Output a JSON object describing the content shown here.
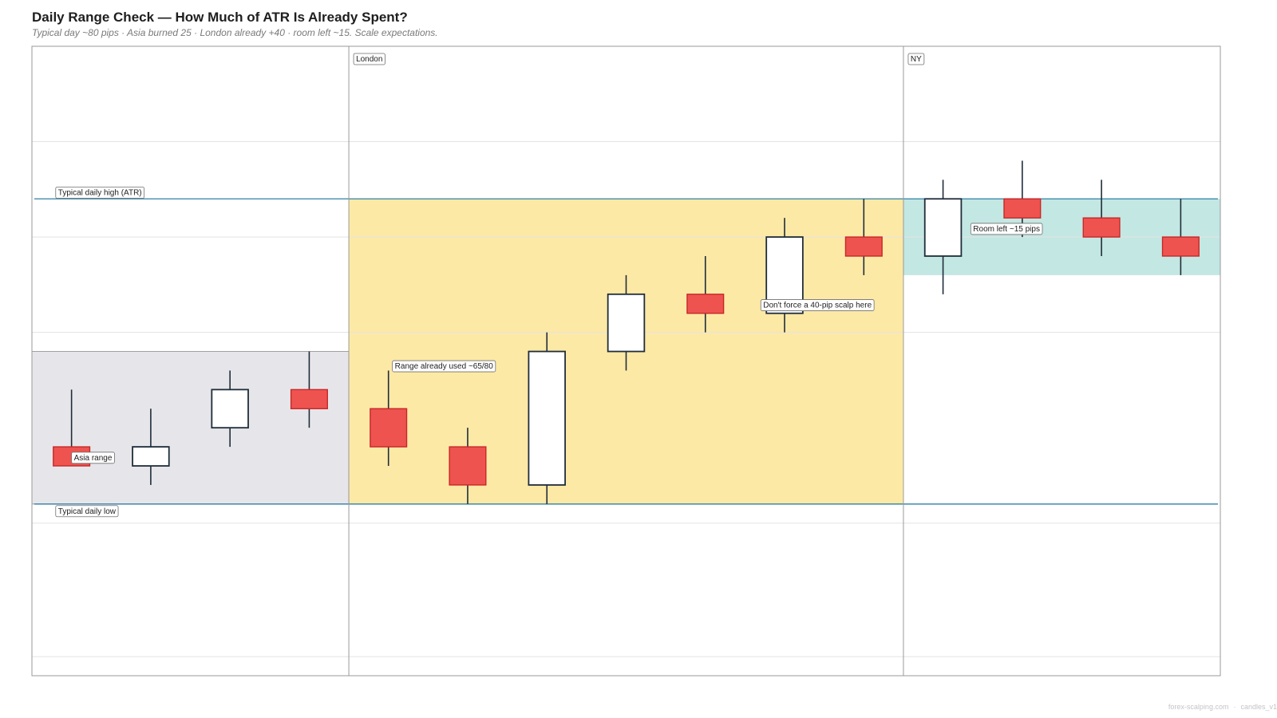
{
  "title": "Daily Range Check — How Much of ATR Is Already Spent?",
  "subtitle": "Typical day ~80 pips · Asia burned 25 · London already +40 · room left ~15. Scale expectations.",
  "footer": {
    "site": "forex-scalping.com",
    "tag": "candles_v1"
  },
  "colors": {
    "bull_fill": "#ffffff",
    "bull_stroke": "#1f2d3a",
    "bear_fill": "#ef5350",
    "bear_stroke": "#c62828",
    "wick": "#1f2d3a",
    "asia_zone": "#e6e6ea",
    "london_zone": "#fde9a6",
    "room_zone": "#c3e7e2",
    "atr_line": "#2f7fa6",
    "grid": "#e3e3e3",
    "divider": "#9a9a9a"
  },
  "chart_data": {
    "type": "candlestick",
    "ylim": [
      -15,
      150
    ],
    "grid_y": [
      -10,
      25,
      75,
      100,
      125
    ],
    "atr_high": 110,
    "atr_low": 30,
    "sessions": [
      {
        "label": "Asia",
        "start": 0,
        "end": 4,
        "show_label": false
      },
      {
        "label": "London",
        "start": 4,
        "end": 11,
        "show_label": true
      },
      {
        "label": "NY",
        "start": 11,
        "end": 15,
        "show_label": true
      }
    ],
    "zones": [
      {
        "name": "asia-range",
        "x0": 0,
        "x1": 4,
        "y0": 30,
        "y1": 70,
        "color_key": "asia_zone"
      },
      {
        "name": "london-used",
        "x0": 4,
        "x1": 11,
        "y0": 30,
        "y1": 110,
        "color_key": "london_zone"
      },
      {
        "name": "room-left",
        "x0": 11,
        "x1": 15,
        "y0": 90,
        "y1": 110,
        "color_key": "room_zone"
      }
    ],
    "candles": [
      {
        "o": 45,
        "h": 60,
        "l": 40,
        "c": 40
      },
      {
        "o": 40,
        "h": 55,
        "l": 35,
        "c": 45
      },
      {
        "o": 50,
        "h": 65,
        "l": 45,
        "c": 60
      },
      {
        "o": 60,
        "h": 70,
        "l": 50,
        "c": 55
      },
      {
        "o": 55,
        "h": 65,
        "l": 40,
        "c": 45
      },
      {
        "o": 45,
        "h": 50,
        "l": 30,
        "c": 35
      },
      {
        "o": 35,
        "h": 75,
        "l": 30,
        "c": 70
      },
      {
        "o": 70,
        "h": 90,
        "l": 65,
        "c": 85
      },
      {
        "o": 85,
        "h": 95,
        "l": 75,
        "c": 80
      },
      {
        "o": 80,
        "h": 105,
        "l": 75,
        "c": 100
      },
      {
        "o": 100,
        "h": 110,
        "l": 90,
        "c": 95
      },
      {
        "o": 95,
        "h": 115,
        "l": 85,
        "c": 110
      },
      {
        "o": 110,
        "h": 120,
        "l": 100,
        "c": 105
      },
      {
        "o": 105,
        "h": 115,
        "l": 95,
        "c": 100
      },
      {
        "o": 100,
        "h": 110,
        "l": 90,
        "c": 95
      }
    ],
    "annotations": [
      {
        "text": "Typical daily high (ATR)",
        "x": 0.3,
        "y": 111
      },
      {
        "text": "Typical daily low",
        "x": 0.3,
        "y": 27.5
      },
      {
        "text": "Asia range",
        "x": 0.5,
        "y": 41.5
      },
      {
        "text": "Range already used ~65/80",
        "x": 4.55,
        "y": 65.5
      },
      {
        "text": "Don't force a 40-pip scalp here",
        "x": 9.2,
        "y": 81.5
      },
      {
        "text": "Room left ~15 pips",
        "x": 11.85,
        "y": 101.5
      }
    ]
  }
}
